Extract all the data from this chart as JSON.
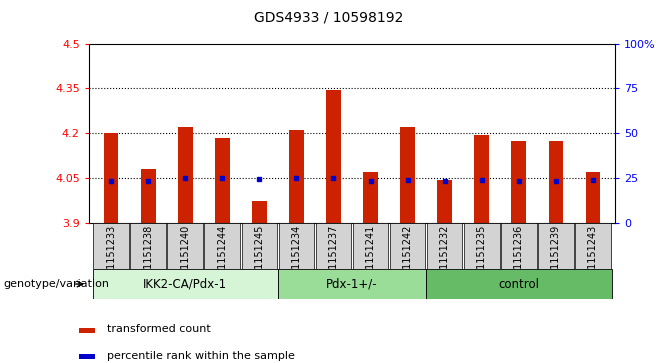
{
  "title": "GDS4933 / 10598192",
  "samples": [
    "GSM1151233",
    "GSM1151238",
    "GSM1151240",
    "GSM1151244",
    "GSM1151245",
    "GSM1151234",
    "GSM1151237",
    "GSM1151241",
    "GSM1151242",
    "GSM1151232",
    "GSM1151235",
    "GSM1151236",
    "GSM1151239",
    "GSM1151243"
  ],
  "transformed_count": [
    4.2,
    4.08,
    4.22,
    4.185,
    3.975,
    4.21,
    4.345,
    4.07,
    4.22,
    4.045,
    4.195,
    4.175,
    4.175,
    4.07
  ],
  "percentile_rank": [
    4.04,
    4.04,
    4.05,
    4.05,
    4.048,
    4.05,
    4.05,
    4.04,
    4.045,
    4.04,
    4.045,
    4.04,
    4.04,
    4.045
  ],
  "groups": [
    {
      "label": "IKK2-CA/Pdx-1",
      "start": 0,
      "end": 4,
      "color": "#d6f5d6"
    },
    {
      "label": "Pdx-1+/-",
      "start": 5,
      "end": 8,
      "color": "#99dd99"
    },
    {
      "label": "control",
      "start": 9,
      "end": 13,
      "color": "#66bb66"
    }
  ],
  "bar_color": "#cc2200",
  "dot_color": "#0000cc",
  "ylim_left": [
    3.9,
    4.5
  ],
  "ylim_right": [
    0,
    100
  ],
  "yticks_left": [
    3.9,
    4.05,
    4.2,
    4.35,
    4.5
  ],
  "yticks_right": [
    0,
    25,
    50,
    75,
    100
  ],
  "ytick_labels_right": [
    "0",
    "25",
    "50",
    "75",
    "100%"
  ],
  "hlines": [
    4.05,
    4.2,
    4.35
  ],
  "bar_width": 0.4,
  "baseline": 3.9,
  "legend_items": [
    {
      "label": "transformed count",
      "color": "#cc2200"
    },
    {
      "label": "percentile rank within the sample",
      "color": "#0000cc"
    }
  ],
  "xlabel_group": "genotype/variation",
  "cell_color": "#d3d3d3"
}
